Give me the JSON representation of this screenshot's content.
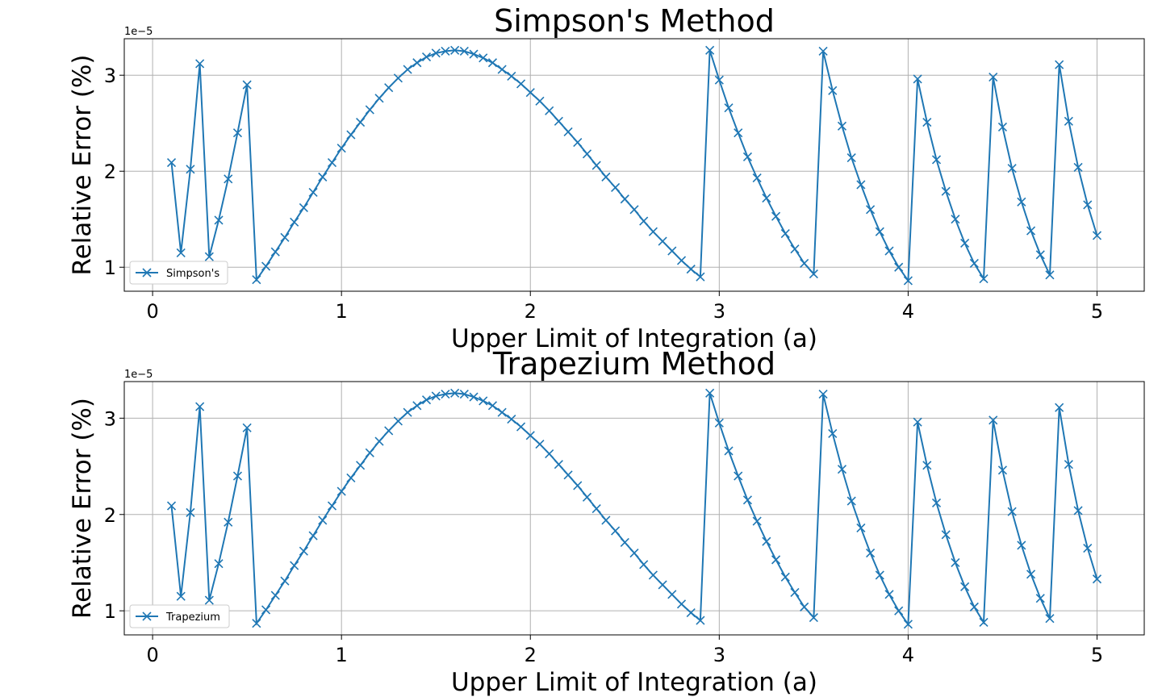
{
  "chart_data": [
    {
      "type": "line",
      "title": "Simpson's Method",
      "xlabel": "Upper Limit of Integration (a)",
      "ylabel": "Relative Error (%)",
      "offset_text": "1e−5",
      "xlim": [
        -0.15,
        5.25
      ],
      "ylim": [
        0.75,
        3.38
      ],
      "xticks": [
        0,
        1,
        2,
        3,
        4,
        5
      ],
      "yticks": [
        1,
        2,
        3
      ],
      "grid": true,
      "legend_position": "lower-left",
      "marker": "x",
      "color": "#1f77b4",
      "series": [
        {
          "name": "Simpson's",
          "x": [
            0.1,
            0.15,
            0.2,
            0.25,
            0.3,
            0.35,
            0.4,
            0.45,
            0.5,
            0.55,
            0.6,
            0.65,
            0.7,
            0.75,
            0.8,
            0.85,
            0.9,
            0.95,
            1.0,
            1.05,
            1.1,
            1.15,
            1.2,
            1.25,
            1.3,
            1.35,
            1.4,
            1.45,
            1.5,
            1.55,
            1.6,
            1.65,
            1.7,
            1.75,
            1.8,
            1.85,
            1.9,
            1.95,
            2.0,
            2.05,
            2.1,
            2.15,
            2.2,
            2.25,
            2.3,
            2.35,
            2.4,
            2.45,
            2.5,
            2.55,
            2.6,
            2.65,
            2.7,
            2.75,
            2.8,
            2.85,
            2.9,
            2.95,
            3.0,
            3.05,
            3.1,
            3.15,
            3.2,
            3.25,
            3.3,
            3.35,
            3.4,
            3.45,
            3.5,
            3.55,
            3.6,
            3.65,
            3.7,
            3.75,
            3.8,
            3.85,
            3.9,
            3.95,
            4.0,
            4.05,
            4.1,
            4.15,
            4.2,
            4.25,
            4.3,
            4.35,
            4.4,
            4.45,
            4.5,
            4.55,
            4.6,
            4.65,
            4.7,
            4.75,
            4.8,
            4.85,
            4.9,
            4.95,
            5.0
          ],
          "y": [
            2.09,
            1.15,
            2.02,
            3.12,
            1.11,
            1.49,
            1.92,
            2.4,
            2.9,
            0.87,
            1.01,
            1.16,
            1.31,
            1.47,
            1.62,
            1.78,
            1.94,
            2.09,
            2.24,
            2.38,
            2.51,
            2.64,
            2.76,
            2.87,
            2.97,
            3.06,
            3.13,
            3.19,
            3.23,
            3.25,
            3.26,
            3.25,
            3.22,
            3.18,
            3.13,
            3.06,
            2.99,
            2.91,
            2.82,
            2.73,
            2.63,
            2.52,
            2.41,
            2.3,
            2.18,
            2.06,
            1.94,
            1.83,
            1.71,
            1.6,
            1.48,
            1.37,
            1.27,
            1.17,
            1.07,
            0.98,
            0.9,
            3.26,
            2.95,
            2.66,
            2.4,
            2.15,
            1.93,
            1.72,
            1.53,
            1.35,
            1.19,
            1.04,
            0.93,
            3.25,
            2.84,
            2.47,
            2.14,
            1.86,
            1.6,
            1.37,
            1.17,
            1.0,
            0.86,
            2.96,
            2.51,
            2.12,
            1.79,
            1.5,
            1.25,
            1.04,
            0.88,
            2.98,
            2.46,
            2.03,
            1.68,
            1.38,
            1.13,
            0.92,
            3.11,
            2.52,
            2.04,
            1.65,
            1.33
          ]
        }
      ]
    },
    {
      "type": "line",
      "title": "Trapezium Method",
      "xlabel": "Upper Limit of Integration (a)",
      "ylabel": "Relative Error (%)",
      "offset_text": "1e−5",
      "xlim": [
        -0.15,
        5.25
      ],
      "ylim": [
        0.75,
        3.38
      ],
      "xticks": [
        0,
        1,
        2,
        3,
        4,
        5
      ],
      "yticks": [
        1,
        2,
        3
      ],
      "grid": true,
      "legend_position": "lower-left",
      "marker": "x",
      "color": "#1f77b4",
      "series": [
        {
          "name": "Trapezium",
          "x": [
            0.1,
            0.15,
            0.2,
            0.25,
            0.3,
            0.35,
            0.4,
            0.45,
            0.5,
            0.55,
            0.6,
            0.65,
            0.7,
            0.75,
            0.8,
            0.85,
            0.9,
            0.95,
            1.0,
            1.05,
            1.1,
            1.15,
            1.2,
            1.25,
            1.3,
            1.35,
            1.4,
            1.45,
            1.5,
            1.55,
            1.6,
            1.65,
            1.7,
            1.75,
            1.8,
            1.85,
            1.9,
            1.95,
            2.0,
            2.05,
            2.1,
            2.15,
            2.2,
            2.25,
            2.3,
            2.35,
            2.4,
            2.45,
            2.5,
            2.55,
            2.6,
            2.65,
            2.7,
            2.75,
            2.8,
            2.85,
            2.9,
            2.95,
            3.0,
            3.05,
            3.1,
            3.15,
            3.2,
            3.25,
            3.3,
            3.35,
            3.4,
            3.45,
            3.5,
            3.55,
            3.6,
            3.65,
            3.7,
            3.75,
            3.8,
            3.85,
            3.9,
            3.95,
            4.0,
            4.05,
            4.1,
            4.15,
            4.2,
            4.25,
            4.3,
            4.35,
            4.4,
            4.45,
            4.5,
            4.55,
            4.6,
            4.65,
            4.7,
            4.75,
            4.8,
            4.85,
            4.9,
            4.95,
            5.0
          ],
          "y": [
            2.09,
            1.15,
            2.02,
            3.12,
            1.11,
            1.49,
            1.92,
            2.4,
            2.9,
            0.87,
            1.01,
            1.16,
            1.31,
            1.47,
            1.62,
            1.78,
            1.94,
            2.09,
            2.24,
            2.38,
            2.51,
            2.64,
            2.76,
            2.87,
            2.97,
            3.06,
            3.13,
            3.19,
            3.23,
            3.25,
            3.26,
            3.25,
            3.22,
            3.18,
            3.13,
            3.06,
            2.99,
            2.91,
            2.82,
            2.73,
            2.63,
            2.52,
            2.41,
            2.3,
            2.18,
            2.06,
            1.94,
            1.83,
            1.71,
            1.6,
            1.48,
            1.37,
            1.27,
            1.17,
            1.07,
            0.98,
            0.9,
            3.26,
            2.95,
            2.66,
            2.4,
            2.15,
            1.93,
            1.72,
            1.53,
            1.35,
            1.19,
            1.04,
            0.93,
            3.25,
            2.84,
            2.47,
            2.14,
            1.86,
            1.6,
            1.37,
            1.17,
            1.0,
            0.86,
            2.96,
            2.51,
            2.12,
            1.79,
            1.5,
            1.25,
            1.04,
            0.88,
            2.98,
            2.46,
            2.03,
            1.68,
            1.38,
            1.13,
            0.92,
            3.11,
            2.52,
            2.04,
            1.65,
            1.33
          ]
        }
      ]
    }
  ]
}
